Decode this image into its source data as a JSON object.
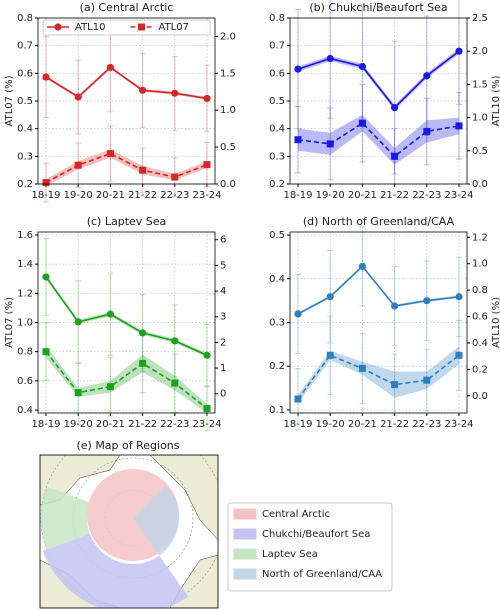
{
  "chart_data": [
    {
      "type": "line",
      "title": "(a) Central Arctic",
      "ylabel": "ATL07 (%)",
      "categories": [
        "18-19",
        "19-20",
        "20-21",
        "21-22",
        "22-23",
        "23-24"
      ],
      "ylim": [
        0.2,
        0.8
      ],
      "yticks": [
        0.2,
        0.3,
        0.4,
        0.5,
        0.6,
        0.7,
        0.8
      ],
      "y2lim": [
        0,
        2.25
      ],
      "y2ticks": [
        {
          "value": 0,
          "label": "0.0"
        },
        0.5,
        {
          "value": 1,
          "label": "1.0"
        },
        1.5,
        {
          "value": 2,
          "label": "2.0"
        }
      ],
      "grid": true,
      "legend": "upper center",
      "series": [
        {
          "name": "ATL10",
          "color": "#d62728",
          "axis": "y2",
          "marker": "circle",
          "dashed": false,
          "values": [
            1.45,
            1.18,
            1.58,
            1.27,
            1.23,
            1.16
          ],
          "errors": [
            0.55,
            0.5,
            0.6,
            0.5,
            0.5,
            0.45
          ],
          "band": [
            0.02,
            0.02,
            0.02,
            0.02,
            0.02,
            0.02
          ]
        },
        {
          "name": "ATL07",
          "color": "#d62728",
          "axis": "y",
          "marker": "square",
          "dashed": true,
          "values": [
            0.205,
            0.268,
            0.31,
            0.25,
            0.225,
            0.27
          ],
          "errors": [
            0.07,
            0.08,
            0.1,
            0.08,
            0.07,
            0.08
          ],
          "band": [
            0.012,
            0.015,
            0.015,
            0.015,
            0.012,
            0.012
          ]
        }
      ]
    },
    {
      "type": "line",
      "title": "(b) Chukchi/Beaufort Sea",
      "y2label": "ATL10 (%)",
      "categories": [
        "18-19",
        "19-20",
        "20-21",
        "21-22",
        "22-23",
        "23-24"
      ],
      "ylim": [
        0.2,
        0.8
      ],
      "yticks": [
        0.2,
        0.3,
        0.4,
        0.5,
        0.6,
        0.7,
        0.8
      ],
      "y2lim": [
        0,
        2.5
      ],
      "y2ticks": [
        {
          "value": 0,
          "label": "0.0"
        },
        0.5,
        {
          "value": 1,
          "label": "1.0"
        },
        1.5,
        {
          "value": 2,
          "label": "2.0"
        },
        2.5
      ],
      "grid": true,
      "series": [
        {
          "color": "#1a1ae6",
          "axis": "y2",
          "marker": "circle",
          "dashed": false,
          "values": [
            1.73,
            1.89,
            1.77,
            1.15,
            1.63,
            2.0
          ],
          "errors": [
            0.9,
            0.9,
            0.9,
            1.0,
            0.9,
            0.8
          ],
          "band": [
            0.04,
            0.04,
            0.04,
            0.04,
            0.04,
            0.04
          ]
        },
        {
          "color": "#1a1ae6",
          "axis": "y",
          "marker": "square",
          "dashed": true,
          "values": [
            0.36,
            0.345,
            0.42,
            0.3,
            0.39,
            0.41
          ],
          "errors": [
            0.12,
            0.13,
            0.14,
            0.1,
            0.12,
            0.12
          ],
          "band": [
            0.04,
            0.04,
            0.03,
            0.03,
            0.04,
            0.03
          ]
        }
      ]
    },
    {
      "type": "line",
      "title": "(c) Laptev Sea",
      "ylabel": "ATL07 (%)",
      "categories": [
        "18-19",
        "19-20",
        "20-21",
        "21-22",
        "22-23",
        "23-24"
      ],
      "ylim": [
        0.38,
        1.62
      ],
      "yticks": [
        0.4,
        0.6,
        0.8,
        {
          "value": 1,
          "label": "1.0"
        },
        1.2,
        1.4,
        1.6
      ],
      "y2lim": [
        -0.75,
        6.3
      ],
      "y2ticks": [
        0,
        1,
        2,
        3,
        4,
        5,
        6
      ],
      "grid": true,
      "series": [
        {
          "color": "#1fa01f",
          "axis": "y2",
          "marker": "circle",
          "dashed": false,
          "values": [
            4.55,
            2.8,
            3.1,
            2.37,
            2.06,
            1.5
          ],
          "errors": [
            1.5,
            1.6,
            1.6,
            1.5,
            1.4,
            1.2
          ],
          "band": [
            0.08,
            0.08,
            0.08,
            0.08,
            0.08,
            0.08
          ]
        },
        {
          "color": "#1fa01f",
          "axis": "y",
          "marker": "square",
          "dashed": true,
          "values": [
            0.8,
            0.52,
            0.56,
            0.72,
            0.585,
            0.41
          ],
          "errors": [
            0.2,
            0.2,
            0.2,
            0.2,
            0.2,
            0.15
          ],
          "band": [
            0.04,
            0.03,
            0.04,
            0.06,
            0.05,
            0.03
          ]
        }
      ]
    },
    {
      "type": "line",
      "title": "(d) North of Greenland/CAA",
      "y2label": "ATL10 (%)",
      "categories": [
        "18-19",
        "19-20",
        "20-21",
        "21-22",
        "22-23",
        "23-24"
      ],
      "ylim": [
        0.093,
        0.507
      ],
      "yticks": [
        0.1,
        0.2,
        0.3,
        0.4,
        0.5
      ],
      "y2lim": [
        -0.13,
        1.24
      ],
      "y2ticks": [
        {
          "value": 0,
          "label": "0.0"
        },
        0.2,
        0.4,
        0.6,
        0.8,
        {
          "value": 1,
          "label": "1.0"
        },
        1.2
      ],
      "grid": true,
      "series": [
        {
          "color": "#2f7fc1",
          "axis": "y2",
          "marker": "circle",
          "dashed": false,
          "values": [
            0.62,
            0.75,
            0.98,
            0.68,
            0.72,
            0.75
          ],
          "errors": [
            0.3,
            0.35,
            0.3,
            0.3,
            0.3,
            0.3
          ],
          "band": [
            0.01,
            0.01,
            0.01,
            0.01,
            0.01,
            0.01
          ]
        },
        {
          "color": "#2f7fc1",
          "axis": "y",
          "marker": "square",
          "dashed": true,
          "values": [
            0.125,
            0.225,
            0.195,
            0.158,
            0.168,
            0.225
          ],
          "errors": [
            0.07,
            0.09,
            0.08,
            0.07,
            0.07,
            0.08
          ],
          "band": [
            0.01,
            0.01,
            0.015,
            0.03,
            0.02,
            0.02
          ]
        }
      ]
    }
  ],
  "map": {
    "title": "(e) Map of Regions",
    "legend": [
      {
        "name": "Central Arctic",
        "color": "#f4c2c4"
      },
      {
        "name": "Chukchi/Beaufort Sea",
        "color": "#c4c4f2"
      },
      {
        "name": "Laptev Sea",
        "color": "#c6e5c2"
      },
      {
        "name": "North of Greenland/CAA",
        "color": "#c2d6ea"
      }
    ]
  }
}
